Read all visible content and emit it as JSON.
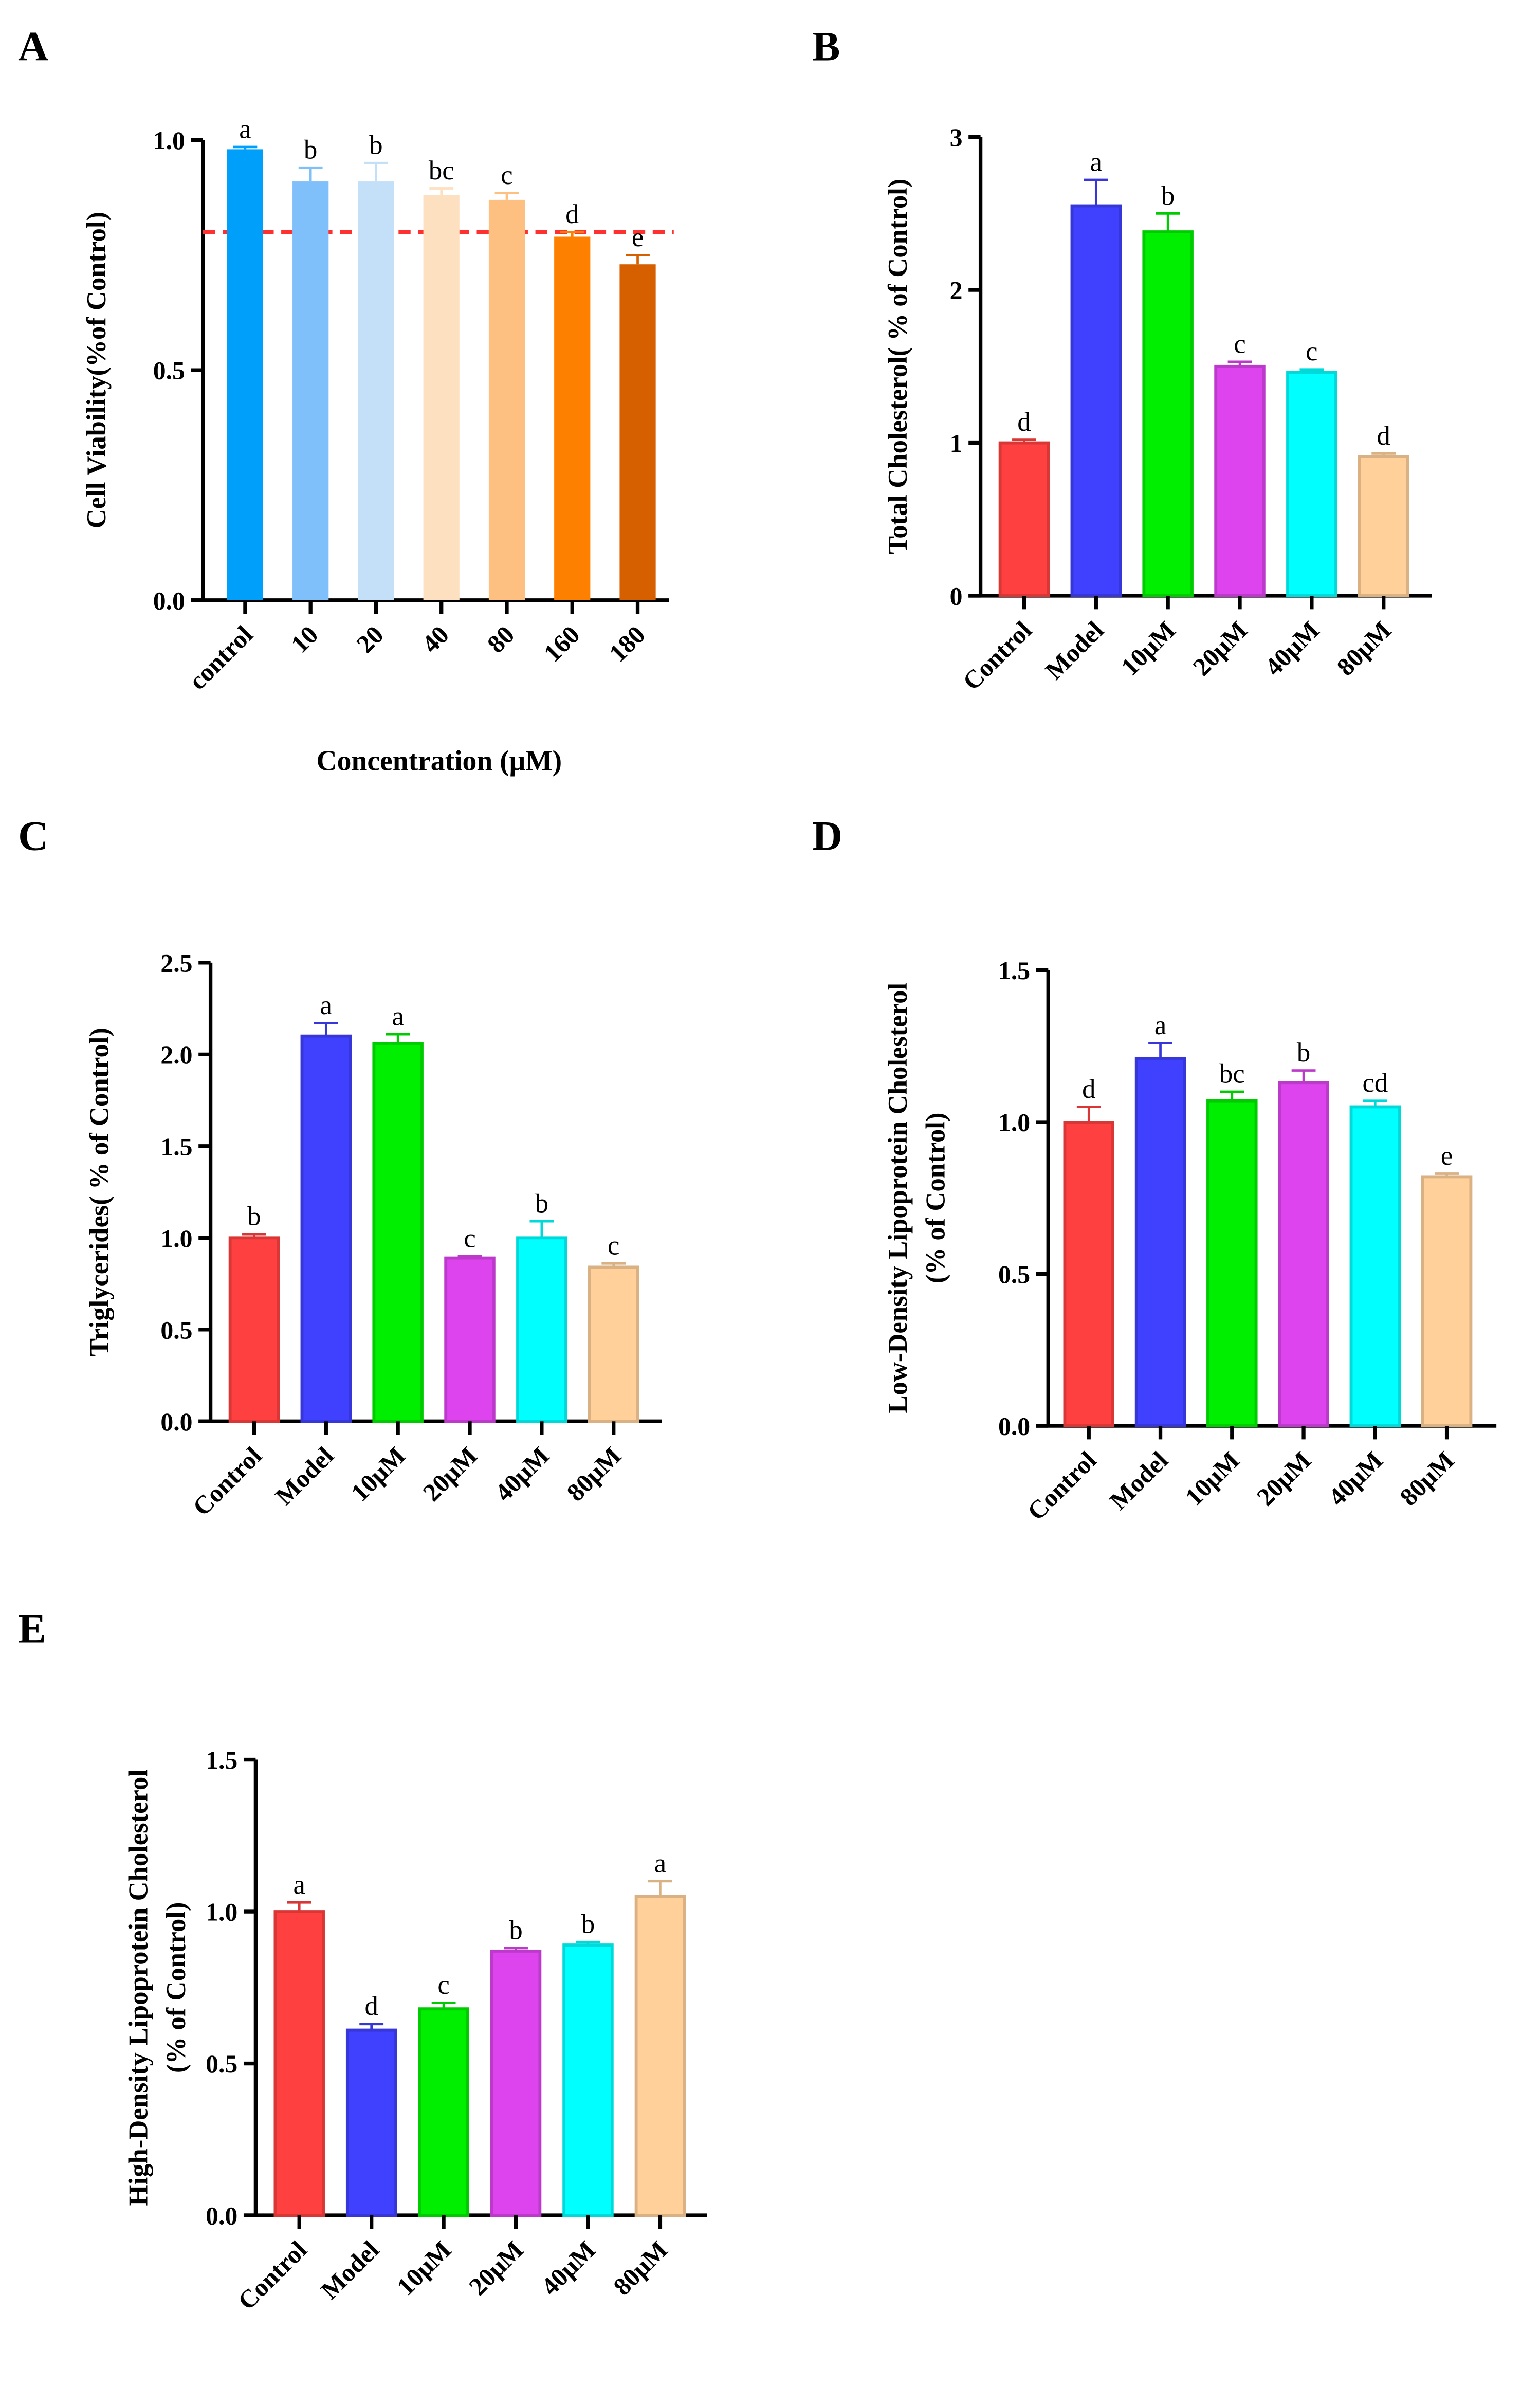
{
  "chart_data": [
    {
      "panel": "A",
      "type": "bar",
      "ylabel": "Cell Viability(%of Control)",
      "xlabel": "Concentration (μM)",
      "categories": [
        "control",
        "10",
        "20",
        "40",
        "80",
        "160",
        "180"
      ],
      "values": [
        0.98,
        0.91,
        0.91,
        0.88,
        0.87,
        0.79,
        0.73
      ],
      "errors": [
        0.005,
        0.03,
        0.04,
        0.015,
        0.015,
        0.01,
        0.02
      ],
      "letters": [
        "a",
        "b",
        "b",
        "bc",
        "c",
        "d",
        "e"
      ],
      "colors": [
        "#00a0fa",
        "#7fbffa",
        "#c3e0f8",
        "#fde0c0",
        "#fdc080",
        "#fe8000",
        "#d65f00"
      ],
      "ylim": [
        0,
        1.0
      ],
      "yticks": [
        "0.0",
        "0.5",
        "1.0"
      ],
      "ytick_values": [
        0,
        0.5,
        1.0
      ],
      "reference_line": 0.8,
      "reference_color": "#ff3030"
    },
    {
      "panel": "B",
      "type": "bar",
      "ylabel": "Total Cholesterol( % of Control)",
      "xlabel": "",
      "categories": [
        "Control",
        "Model",
        "10μM",
        "20μM",
        "40μM",
        "80μM"
      ],
      "values": [
        1.0,
        2.55,
        2.38,
        1.5,
        1.46,
        0.91
      ],
      "errors": [
        0.02,
        0.17,
        0.12,
        0.03,
        0.02,
        0.02
      ],
      "letters": [
        "d",
        "a",
        "b",
        "c",
        "c",
        "d"
      ],
      "colors": [
        "#ff4040",
        "#4040ff",
        "#00ee00",
        "#dd44ee",
        "#00ffff",
        "#ffd09a"
      ],
      "ylim": [
        0,
        3
      ],
      "yticks": [
        "0",
        "1",
        "2",
        "3"
      ],
      "ytick_values": [
        0,
        1,
        2,
        3
      ]
    },
    {
      "panel": "C",
      "type": "bar",
      "ylabel": "Triglycerides( % of Control)",
      "xlabel": "",
      "categories": [
        "Control",
        "Model",
        "10μM",
        "20μM",
        "40μM",
        "80μM"
      ],
      "values": [
        1.0,
        2.1,
        2.06,
        0.89,
        1.0,
        0.84
      ],
      "errors": [
        0.02,
        0.07,
        0.05,
        0.01,
        0.09,
        0.02
      ],
      "letters": [
        "b",
        "a",
        "a",
        "c",
        "b",
        "c"
      ],
      "colors": [
        "#ff4040",
        "#4040ff",
        "#00ee00",
        "#dd44ee",
        "#00ffff",
        "#ffd09a"
      ],
      "ylim": [
        0,
        2.5
      ],
      "yticks": [
        "0.0",
        "0.5",
        "1.0",
        "1.5",
        "2.0",
        "2.5"
      ],
      "ytick_values": [
        0,
        0.5,
        1,
        1.5,
        2,
        2.5
      ]
    },
    {
      "panel": "D",
      "type": "bar",
      "ylabel": "Low-Density Lipoprotein Cholesterol",
      "ylabel2": "(% of Control)",
      "xlabel": "",
      "categories": [
        "Control",
        "Model",
        "10μM",
        "20μM",
        "40μM",
        "80μM"
      ],
      "values": [
        1.0,
        1.21,
        1.07,
        1.13,
        1.05,
        0.82
      ],
      "errors": [
        0.05,
        0.05,
        0.03,
        0.04,
        0.02,
        0.01
      ],
      "letters": [
        "d",
        "a",
        "bc",
        "b",
        "cd",
        "e"
      ],
      "colors": [
        "#ff4040",
        "#4040ff",
        "#00ee00",
        "#dd44ee",
        "#00ffff",
        "#ffd09a"
      ],
      "ylim": [
        0,
        1.5
      ],
      "yticks": [
        "0.0",
        "0.5",
        "1.0",
        "1.5"
      ],
      "ytick_values": [
        0,
        0.5,
        1,
        1.5
      ]
    },
    {
      "panel": "E",
      "type": "bar",
      "ylabel": "High-Density Lipoprotein Cholesterol",
      "ylabel2": "(% of Control)",
      "xlabel": "",
      "categories": [
        "Control",
        "Model",
        "10μM",
        "20μM",
        "40μM",
        "80μM"
      ],
      "values": [
        1.0,
        0.61,
        0.68,
        0.87,
        0.89,
        1.05
      ],
      "errors": [
        0.03,
        0.02,
        0.02,
        0.01,
        0.01,
        0.05
      ],
      "letters": [
        "a",
        "d",
        "c",
        "b",
        "b",
        "a"
      ],
      "colors": [
        "#ff4040",
        "#4040ff",
        "#00ee00",
        "#dd44ee",
        "#00ffff",
        "#ffd09a"
      ],
      "ylim": [
        0,
        1.5
      ],
      "yticks": [
        "0.0",
        "0.5",
        "1.0",
        "1.5"
      ],
      "ytick_values": [
        0,
        0.5,
        1,
        1.5
      ]
    }
  ]
}
